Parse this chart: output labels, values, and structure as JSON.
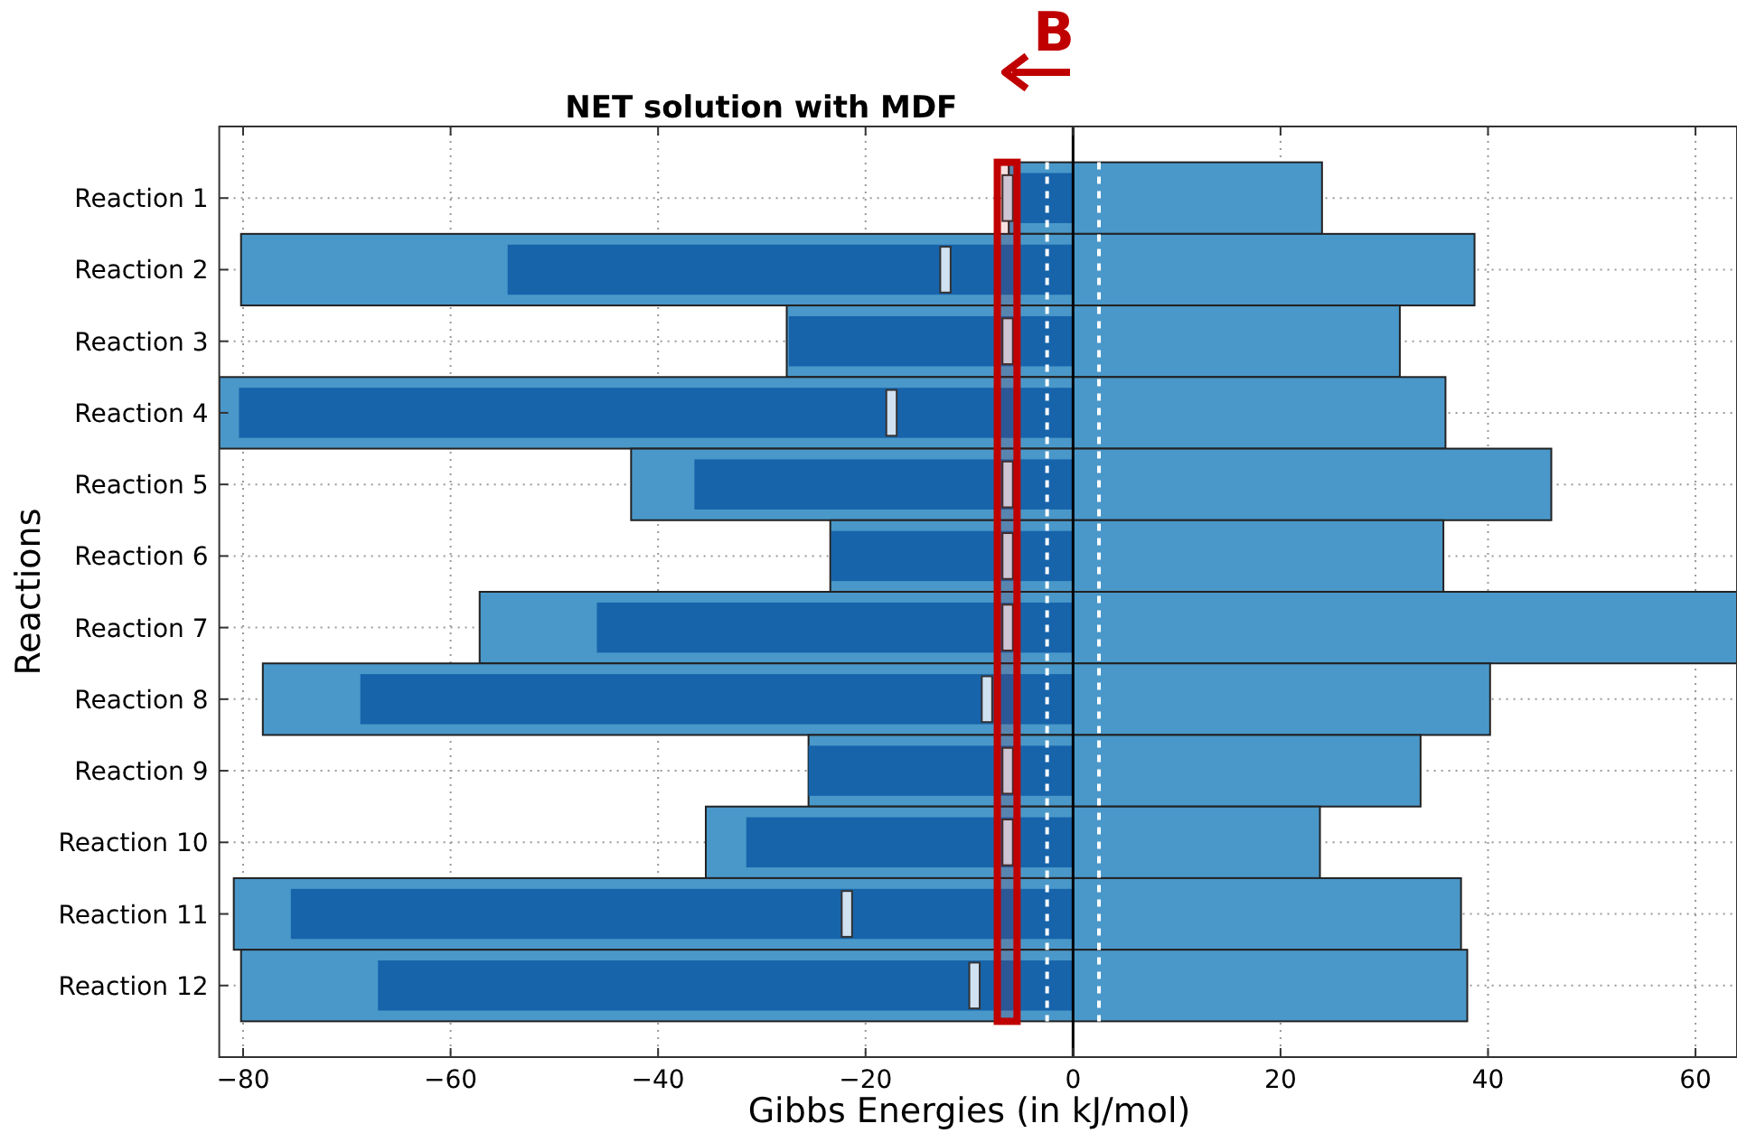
{
  "chart_data": {
    "type": "bar",
    "orientation": "horizontal",
    "title": "NET solution with MDF",
    "xlabel": "Gibbs Energies (in kJ/mol)",
    "ylabel": "Reactions",
    "categories": [
      "Reaction 1",
      "Reaction 2",
      "Reaction 3",
      "Reaction 4",
      "Reaction 5",
      "Reaction 6",
      "Reaction 7",
      "Reaction 8",
      "Reaction 9",
      "Reaction 10",
      "Reaction 11",
      "Reaction 12"
    ],
    "series": [
      {
        "color": "#4a98c9",
        "base": [
          -6.2,
          -80.2,
          -27.6,
          -82.3,
          -42.6,
          -23.4,
          -57.2,
          -78.1,
          -25.5,
          -35.4,
          -80.9,
          -80.2
        ],
        "values": [
          30.2,
          118.9,
          59.1,
          118.2,
          88.7,
          59.1,
          121.2,
          118.3,
          59.0,
          59.2,
          118.3,
          118.2
        ]
      },
      {
        "color": "#1764ab",
        "values": [
          -5.5,
          -54.5,
          -27.4,
          -80.4,
          -36.5,
          -23.3,
          -45.9,
          -68.7,
          -25.5,
          -31.5,
          -75.4,
          -67.0
        ]
      },
      {
        "color": "#d0e1f2",
        "base": [
          -6.8,
          -12.8,
          -6.8,
          -18.0,
          -6.8,
          -6.8,
          -6.8,
          -8.8,
          -6.8,
          -6.8,
          -22.3,
          -10.0
        ],
        "values": [
          1.0,
          1.0,
          1.0,
          1.0,
          1.0,
          1.0,
          1.0,
          1.0,
          1.0,
          1.0,
          1.0,
          1.0
        ]
      }
    ],
    "xlim": [
      -82.3,
      64
    ],
    "xticks": [
      {
        "value": -80,
        "label": "−80"
      },
      {
        "value": -60,
        "label": "−60"
      },
      {
        "value": -40,
        "label": "−40"
      },
      {
        "value": -20,
        "label": "−20"
      },
      0,
      20,
      40,
      60
    ],
    "ref_lines": [
      {
        "axis": "x",
        "value": 0,
        "color": "#000000",
        "line_style": "solid"
      },
      {
        "axis": "x",
        "value": -2.5,
        "color": "#ffffff",
        "line_style": "dashed"
      },
      {
        "axis": "x",
        "value": 2.5,
        "color": "#ffffff",
        "line_style": "dashed"
      }
    ],
    "bands": [
      {
        "axis": "x",
        "from": -7.3,
        "to": -5.4,
        "color": "#c00000"
      }
    ],
    "annotations": [
      "B"
    ],
    "grid": true
  }
}
